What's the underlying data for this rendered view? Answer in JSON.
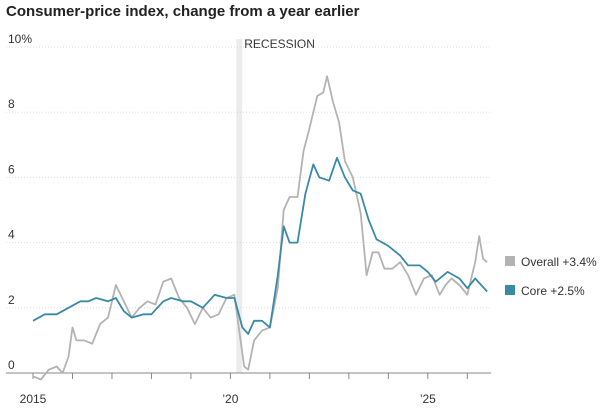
{
  "chart_data": {
    "type": "line",
    "title": "Consumer-price index, change from a year earlier",
    "recession": {
      "label": "RECESSION",
      "start": 2020.15,
      "end": 2020.3
    },
    "xlim": [
      2015,
      2026.6
    ],
    "xticks": [
      2015,
      {
        "value": 2016,
        "label": null
      },
      {
        "value": 2017,
        "label": null
      },
      {
        "value": 2018,
        "label": null
      },
      {
        "value": 2019,
        "label": null
      },
      {
        "value": 2020,
        "label": "’20"
      },
      {
        "value": 2021,
        "label": null
      },
      {
        "value": 2022,
        "label": null
      },
      {
        "value": 2023,
        "label": null
      },
      {
        "value": 2024,
        "label": null
      },
      {
        "value": 2025,
        "label": "’25"
      },
      {
        "value": 2026,
        "label": null
      }
    ],
    "ylim": [
      0,
      10
    ],
    "yticks": [
      0,
      2,
      4,
      6,
      8,
      {
        "value": 10,
        "label": "10%"
      }
    ],
    "grid": true,
    "legend": "right",
    "series": [
      {
        "name": "Overall +3.4%",
        "color": "#b3b3b3",
        "x": [
          2015.0,
          2015.2,
          2015.4,
          2015.6,
          2015.75,
          2015.9,
          2016.0,
          2016.1,
          2016.3,
          2016.5,
          2016.7,
          2016.9,
          2017.1,
          2017.3,
          2017.5,
          2017.7,
          2017.9,
          2018.1,
          2018.3,
          2018.5,
          2018.7,
          2018.9,
          2019.1,
          2019.3,
          2019.5,
          2019.7,
          2019.9,
          2020.1,
          2020.2,
          2020.35,
          2020.45,
          2020.6,
          2020.8,
          2021.0,
          2021.2,
          2021.35,
          2021.5,
          2021.7,
          2021.85,
          2022.0,
          2022.2,
          2022.35,
          2022.45,
          2022.6,
          2022.75,
          2022.9,
          2023.1,
          2023.3,
          2023.45,
          2023.6,
          2023.75,
          2023.9,
          2024.1,
          2024.3,
          2024.5,
          2024.7,
          2024.9,
          2025.1,
          2025.3,
          2025.45,
          2025.6,
          2025.8,
          2026.0,
          2026.2,
          2026.3,
          2026.4,
          2026.5
        ],
        "values": [
          -0.1,
          -0.2,
          0.1,
          0.2,
          0.0,
          0.5,
          1.4,
          1.0,
          1.0,
          0.9,
          1.5,
          1.7,
          2.7,
          2.2,
          1.7,
          2.0,
          2.2,
          2.1,
          2.8,
          2.9,
          2.3,
          2.0,
          1.5,
          2.0,
          1.7,
          1.8,
          2.3,
          2.4,
          1.5,
          0.2,
          0.1,
          1.0,
          1.3,
          1.4,
          2.6,
          5.0,
          5.4,
          5.4,
          6.8,
          7.5,
          8.5,
          8.6,
          9.1,
          8.3,
          7.7,
          6.5,
          6.0,
          4.9,
          3.0,
          3.7,
          3.7,
          3.2,
          3.2,
          3.4,
          3.0,
          2.4,
          2.9,
          3.0,
          2.4,
          2.7,
          2.9,
          2.7,
          2.4,
          3.4,
          4.2,
          3.5,
          3.4
        ]
      },
      {
        "name": "Core +2.5%",
        "color": "#3a8aa6",
        "x": [
          2015.0,
          2015.3,
          2015.6,
          2015.9,
          2016.2,
          2016.4,
          2016.6,
          2016.9,
          2017.1,
          2017.3,
          2017.5,
          2017.8,
          2018.0,
          2018.3,
          2018.5,
          2018.8,
          2019.0,
          2019.3,
          2019.6,
          2019.9,
          2020.1,
          2020.3,
          2020.45,
          2020.6,
          2020.8,
          2021.0,
          2021.2,
          2021.35,
          2021.5,
          2021.7,
          2021.9,
          2022.1,
          2022.25,
          2022.5,
          2022.7,
          2022.9,
          2023.1,
          2023.3,
          2023.5,
          2023.7,
          2024.0,
          2024.3,
          2024.5,
          2024.8,
          2025.0,
          2025.2,
          2025.5,
          2025.8,
          2026.0,
          2026.2,
          2026.5
        ],
        "values": [
          1.6,
          1.8,
          1.8,
          2.0,
          2.2,
          2.2,
          2.3,
          2.2,
          2.3,
          1.9,
          1.7,
          1.8,
          1.8,
          2.2,
          2.3,
          2.2,
          2.2,
          2.0,
          2.4,
          2.3,
          2.3,
          1.4,
          1.2,
          1.6,
          1.6,
          1.4,
          3.0,
          4.5,
          4.0,
          4.0,
          5.5,
          6.4,
          6.0,
          5.9,
          6.6,
          6.0,
          5.6,
          5.5,
          4.7,
          4.1,
          3.9,
          3.6,
          3.3,
          3.3,
          3.1,
          2.8,
          3.1,
          2.9,
          2.6,
          2.9,
          2.5
        ]
      }
    ]
  }
}
